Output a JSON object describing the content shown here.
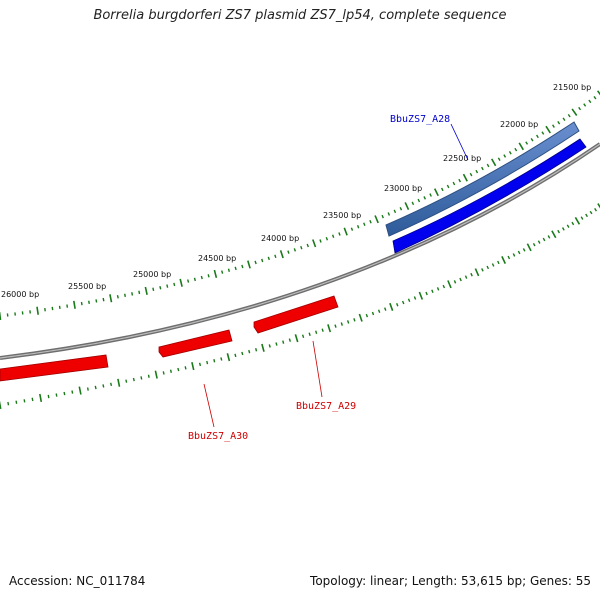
{
  "title": "Borrelia burgdorferi ZS7 plasmid ZS7_lp54, complete sequence",
  "footer": {
    "accession": "Accession: NC_011784",
    "summary": "Topology: linear; Length: 53,615 bp; Genes: 55"
  },
  "ruler": {
    "labels": [
      "21500 bp",
      "22000 bp",
      "22500 bp",
      "23000 bp",
      "23500 bp",
      "24000 bp",
      "24500 bp",
      "25000 bp",
      "25500 bp",
      "26000 bp"
    ]
  },
  "genes": [
    {
      "name": "BbuZS7_A28",
      "strand": "forward",
      "color": "#0000cc"
    },
    {
      "name": "BbuZS7_A29",
      "strand": "reverse",
      "color": "#cc0000"
    },
    {
      "name": "BbuZS7_A30",
      "strand": "reverse",
      "color": "#cc0000"
    }
  ],
  "colors": {
    "backbone": "#808080",
    "tick": "#1a7a1a",
    "forward_gene": "#0000ff",
    "reverse_gene": "#ff0000",
    "feature_bar": "#4f81bd"
  }
}
